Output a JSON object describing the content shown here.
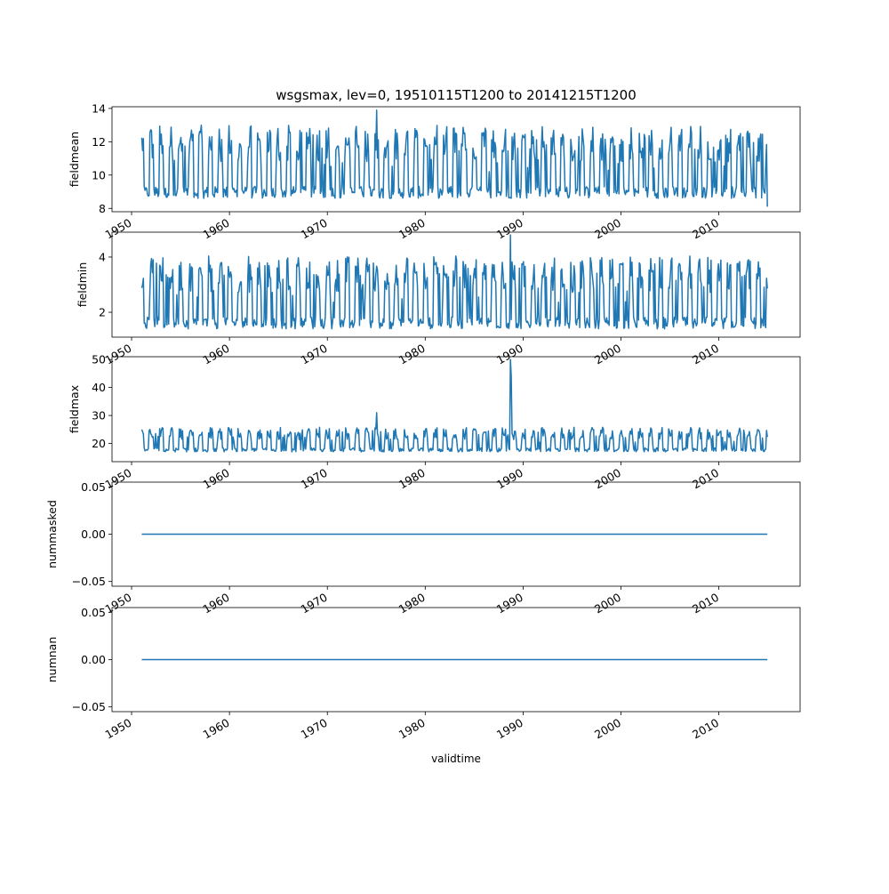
{
  "figure": {
    "title": "wsgsmax, lev=0, 19510115T1200 to 20141215T1200",
    "xlabel": "validtime",
    "line_color": "#1f77b4"
  },
  "chart_data": [
    {
      "type": "line",
      "name": "fieldmean",
      "ylabel": "fieldmean",
      "ylim": [
        7.8,
        14.1
      ],
      "yticks": [
        "8",
        "10",
        "12",
        "14"
      ],
      "ytick_values": [
        8,
        10,
        12,
        14
      ],
      "xlim": [
        1948.0,
        2018.3
      ],
      "xticks": [
        "1950",
        "1960",
        "1970",
        "1980",
        "1990",
        "2000",
        "2010"
      ],
      "xtick_values": [
        1950,
        1960,
        1970,
        1980,
        1990,
        2000,
        2010
      ],
      "x_range": [
        "1951-01-15",
        "2014-12-15"
      ],
      "sampling": "monthly",
      "seasonal_cycle": {
        "winter_peak": 12.6,
        "summer_trough": 8.6
      },
      "notable": [
        {
          "x": "1975",
          "y": 13.9
        },
        {
          "x": "2014-12",
          "y": 8.1
        }
      ]
    },
    {
      "type": "line",
      "name": "fieldmin",
      "ylabel": "fieldmin",
      "ylim": [
        1.1,
        4.9
      ],
      "yticks": [
        "2",
        "4"
      ],
      "ytick_values": [
        2,
        4
      ],
      "xlim": [
        1948.0,
        2018.3
      ],
      "xticks": [
        "1950",
        "1960",
        "1970",
        "1980",
        "1990",
        "2000",
        "2010"
      ],
      "xtick_values": [
        1950,
        1960,
        1970,
        1980,
        1990,
        2000,
        2010
      ],
      "x_range": [
        "1951-01-15",
        "2014-12-15"
      ],
      "sampling": "monthly",
      "seasonal_cycle": {
        "winter_peak": 3.8,
        "summer_trough": 1.4
      },
      "notable": [
        {
          "x": "1988-09",
          "y": 4.8
        }
      ]
    },
    {
      "type": "line",
      "name": "fieldmax",
      "ylabel": "fieldmax",
      "ylim": [
        13.5,
        51.0
      ],
      "yticks": [
        "20",
        "30",
        "40",
        "50"
      ],
      "ytick_values": [
        20,
        30,
        40,
        50
      ],
      "xlim": [
        1948.0,
        2018.3
      ],
      "xticks": [
        "1950",
        "1960",
        "1970",
        "1980",
        "1990",
        "2000",
        "2010"
      ],
      "xtick_values": [
        1950,
        1960,
        1970,
        1980,
        1990,
        2000,
        2010
      ],
      "x_range": [
        "1951-01-15",
        "2014-12-15"
      ],
      "sampling": "monthly",
      "seasonal_cycle": {
        "winter_peak": 25,
        "summer_trough": 17
      },
      "notable": [
        {
          "x": "1988-09",
          "y": 50
        },
        {
          "x": "1988-10",
          "y": 44
        },
        {
          "x": "1975",
          "y": 31
        }
      ]
    },
    {
      "type": "line",
      "name": "nummasked",
      "ylabel": "nummasked",
      "ylim": [
        -0.055,
        0.055
      ],
      "yticks": [
        "−0.05",
        "0.00",
        "0.05"
      ],
      "ytick_values": [
        -0.05,
        0.0,
        0.05
      ],
      "xlim": [
        1948.0,
        2018.3
      ],
      "xticks": [
        "1950",
        "1960",
        "1970",
        "1980",
        "1990",
        "2000",
        "2010"
      ],
      "xtick_values": [
        1950,
        1960,
        1970,
        1980,
        1990,
        2000,
        2010
      ],
      "x": [
        "1951-01-15",
        "2014-12-15"
      ],
      "values": [
        0,
        0
      ]
    },
    {
      "type": "line",
      "name": "numnan",
      "ylabel": "numnan",
      "ylim": [
        -0.055,
        0.055
      ],
      "yticks": [
        "−0.05",
        "0.00",
        "0.05"
      ],
      "ytick_values": [
        -0.05,
        0.0,
        0.05
      ],
      "xlim": [
        1948.0,
        2018.3
      ],
      "xticks": [
        "1950",
        "1960",
        "1970",
        "1980",
        "1990",
        "2000",
        "2010"
      ],
      "xtick_values": [
        1950,
        1960,
        1970,
        1980,
        1990,
        2000,
        2010
      ],
      "x": [
        "1951-01-15",
        "2014-12-15"
      ],
      "values": [
        0,
        0
      ]
    }
  ]
}
